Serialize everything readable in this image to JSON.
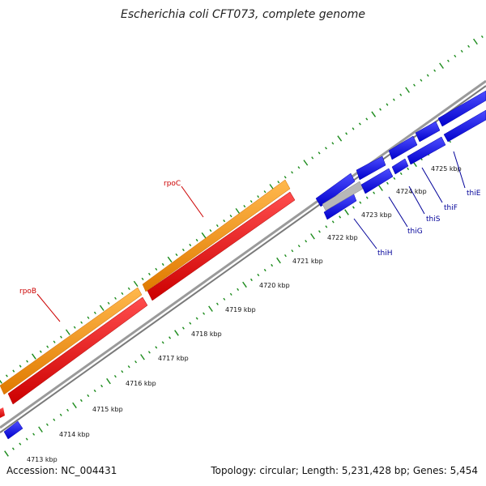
{
  "title": "Escherichia coli CFT073, complete genome",
  "footer": {
    "accession": "Accession: NC_004431",
    "summary": "Topology: circular; Length: 5,231,428 bp; Genes: 5,454"
  },
  "colors": {
    "rpoB_rpoC": "#ff9900",
    "reverse_red": "#ff0000",
    "blue_genes": "#0000ff",
    "gray_gene": "#b0b0b0",
    "backbone": "#8a8a8a",
    "tick": "#1a8a1a",
    "label_red": "#cc0000",
    "label_blue": "#000099"
  },
  "scale": {
    "unit": "kbp",
    "ticks": [
      {
        "pos": 4713,
        "label": "4713 kbp"
      },
      {
        "pos": 4714,
        "label": "4714 kbp"
      },
      {
        "pos": 4715,
        "label": "4715 kbp"
      },
      {
        "pos": 4716,
        "label": "4716 kbp"
      },
      {
        "pos": 4717,
        "label": "4717 kbp"
      },
      {
        "pos": 4718,
        "label": "4718 kbp"
      },
      {
        "pos": 4719,
        "label": "4719 kbp"
      },
      {
        "pos": 4720,
        "label": "4720 kbp"
      },
      {
        "pos": 4721,
        "label": "4721 kbp"
      },
      {
        "pos": 4722,
        "label": "4722 kbp"
      },
      {
        "pos": 4723,
        "label": "4723 kbp"
      },
      {
        "pos": 4724,
        "label": "4724 kbp"
      },
      {
        "pos": 4725,
        "label": "4725 kbp"
      }
    ]
  },
  "genes": [
    {
      "name": "rpoB",
      "color": "#ff0000",
      "label_color": "#cc0000"
    },
    {
      "name": "rpoC",
      "color": "#ff0000",
      "label_color": "#cc0000"
    },
    {
      "name": "thiH",
      "color": "#0000ff",
      "label_color": "#000099"
    },
    {
      "name": "thiG",
      "color": "#0000ff",
      "label_color": "#000099"
    },
    {
      "name": "thiS",
      "color": "#0000ff",
      "label_color": "#000099"
    },
    {
      "name": "thiF",
      "color": "#0000ff",
      "label_color": "#000099"
    },
    {
      "name": "thiE",
      "color": "#0000ff",
      "label_color": "#000099"
    }
  ]
}
